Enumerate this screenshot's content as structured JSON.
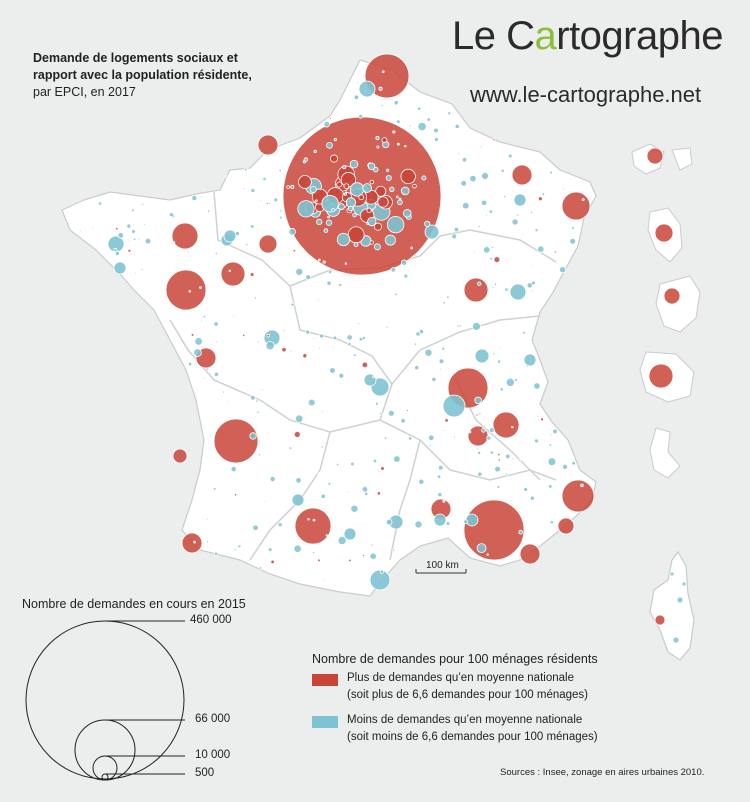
{
  "title": {
    "line1": "Demande de logements sociaux et",
    "line2": "rapport avec la population résidente,",
    "line3": "par EPCI, en 2017"
  },
  "logo": {
    "before": "Le ",
    "c": "C",
    "a": "a",
    "rest": "rtographe",
    "url": "www.le-cartographe.net"
  },
  "scale": {
    "label": "100 km"
  },
  "size_legend": {
    "title": "Nombre de demandes en cours en 2015",
    "values": [
      "460 000",
      "66 000",
      "10 000",
      "500"
    ]
  },
  "color_legend": {
    "title": "Nombre de demandes pour 100 ménages résidents",
    "above": {
      "line1": "Plus de demandes qu’en moyenne nationale",
      "line2": "(soit plus de 6,6 demandes pour 100 ménages)",
      "color": "#c9453a"
    },
    "below": {
      "line1": "Moins de demandes qu’en moyenne nationale",
      "line2": "(soit moins de 6,6 demandes pour 100 ménages)",
      "color": "#7ec3d1"
    }
  },
  "sources": "Sources : Insee, zonage en aires urbaines 2010.",
  "colors": {
    "land": "#ffffff",
    "sea": "#eceded",
    "red": "#c9453a",
    "blue": "#7ec3d1"
  }
}
